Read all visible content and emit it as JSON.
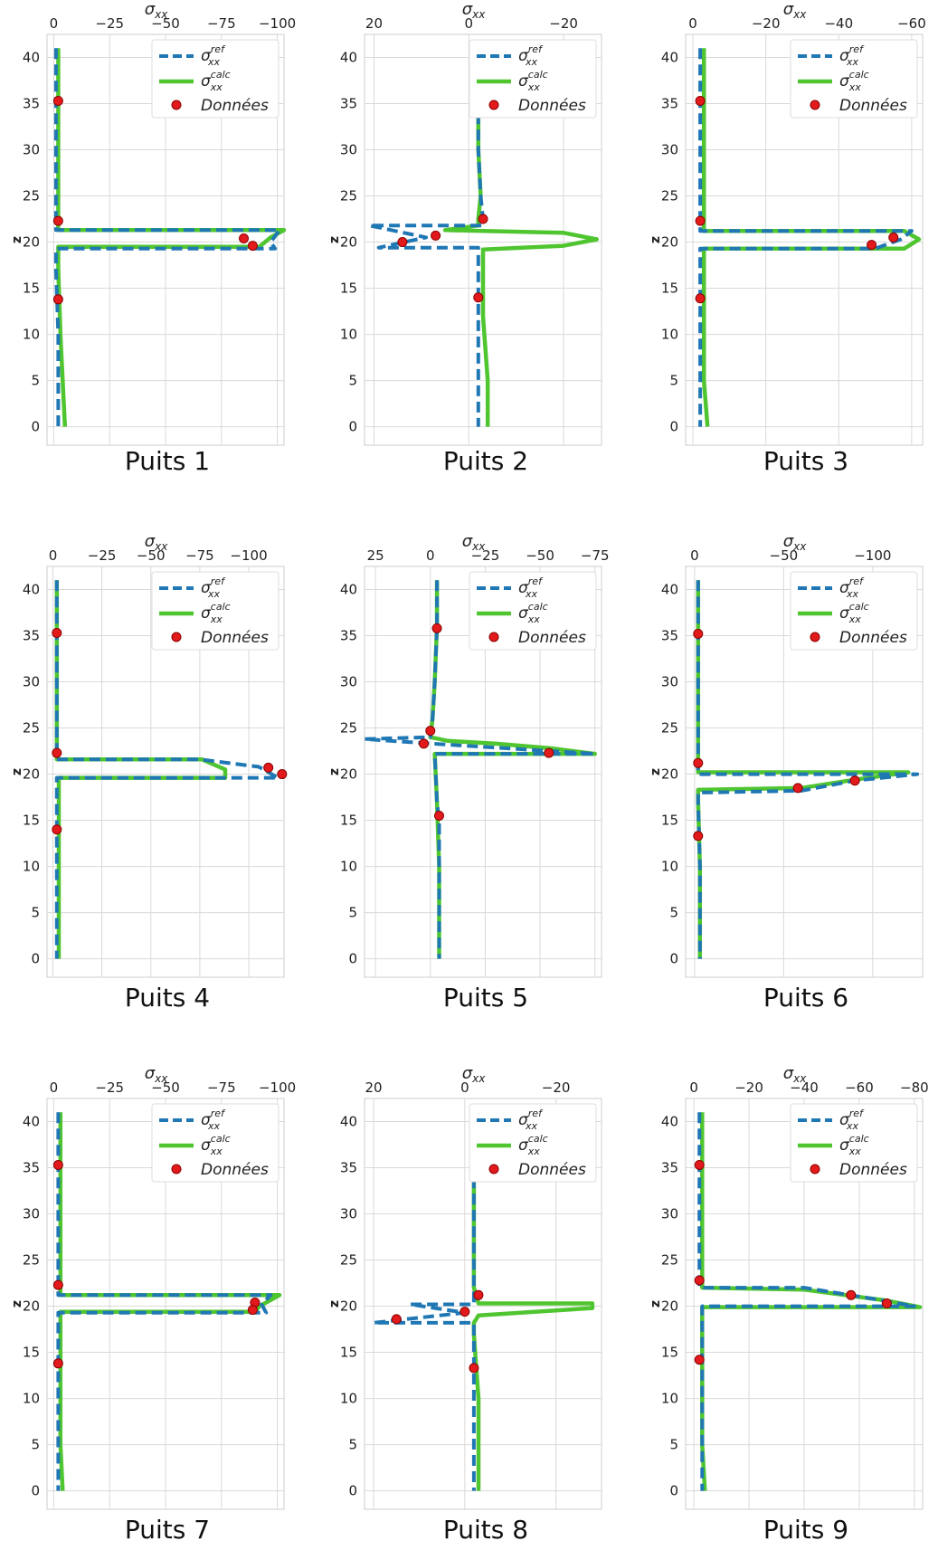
{
  "figure": {
    "xlabel": "σ",
    "xlabel_sub": "xx",
    "ylabel": "z",
    "legend": {
      "ref": {
        "sym": "σ",
        "sup": "ref",
        "sub": "xx"
      },
      "calc": {
        "sym": "σ",
        "sup": "calc",
        "sub": "xx"
      },
      "data": "Données"
    },
    "colors": {
      "ref": "#1f77b4",
      "calc": "#4fc52f",
      "data": "#e31a1c",
      "data_edge": "#8b0000",
      "grid": "#d9d9d9"
    }
  },
  "chart_data": [
    {
      "type": "line",
      "title": "Puits 1",
      "legend_position": "top-right",
      "grid": true,
      "xlim": [
        3,
        -103
      ],
      "ylim": [
        -2,
        42.5
      ],
      "xticks": [
        0,
        -25,
        -50,
        -75,
        -100
      ],
      "yticks": [
        0,
        5,
        10,
        15,
        20,
        25,
        30,
        35,
        40
      ],
      "series": [
        {
          "name": "ref",
          "x": [
            -1,
            -1,
            -1,
            -1,
            -1,
            -1,
            -101,
            -97,
            -99,
            -1,
            -1,
            -2,
            -2,
            -2
          ],
          "y": [
            41,
            36,
            30,
            25,
            22.5,
            21.3,
            21.3,
            20,
            19.3,
            19.3,
            17,
            10,
            5,
            0
          ]
        },
        {
          "name": "calc",
          "x": [
            -2,
            -2,
            -2,
            -2,
            -2,
            -2,
            -103,
            -97,
            -92,
            -2,
            -2,
            -3,
            -4,
            -5
          ],
          "y": [
            41,
            36,
            30,
            25,
            22.5,
            21.3,
            21.3,
            20.5,
            19.5,
            19.5,
            17,
            10,
            5,
            0
          ]
        }
      ],
      "points": {
        "x": [
          -2,
          -2,
          -2,
          -85,
          -89
        ],
        "y": [
          35.3,
          22.3,
          13.8,
          20.4,
          19.6
        ]
      }
    },
    {
      "type": "line",
      "title": "Puits 2",
      "legend_position": "top-right",
      "grid": true,
      "xlim": [
        22,
        -28
      ],
      "ylim": [
        -2,
        42.5
      ],
      "xticks": [
        20,
        0,
        -20
      ],
      "yticks": [
        0,
        5,
        10,
        15,
        20,
        25,
        30,
        35,
        40
      ],
      "series": [
        {
          "name": "ref",
          "x": [
            -2,
            -2,
            -2,
            -2.5,
            -3,
            -3,
            21,
            9,
            19,
            -2,
            -2,
            -2,
            -2,
            -2
          ],
          "y": [
            41,
            36,
            30,
            25,
            22.5,
            21.8,
            21.8,
            20.5,
            19.4,
            19.4,
            17,
            10,
            5,
            0
          ]
        },
        {
          "name": "calc",
          "x": [
            -2,
            -2,
            -2,
            -2.5,
            -2,
            -2,
            5,
            -20,
            -27,
            -20,
            -3,
            -3,
            -4,
            -4
          ],
          "y": [
            41,
            36,
            30,
            25,
            22.5,
            21.8,
            21.3,
            21,
            20.3,
            19.6,
            19.2,
            12,
            5,
            0
          ]
        }
      ],
      "points": {
        "x": [
          -2,
          -3,
          -2,
          7,
          14
        ],
        "y": [
          35.3,
          22.5,
          14,
          20.7,
          20
        ]
      }
    },
    {
      "type": "line",
      "title": "Puits 3",
      "legend_position": "top-right",
      "grid": true,
      "xlim": [
        2,
        -63
      ],
      "ylim": [
        -2,
        42.5
      ],
      "xticks": [
        0,
        -20,
        -40,
        -60
      ],
      "yticks": [
        0,
        5,
        10,
        15,
        20,
        25,
        30,
        35,
        40
      ],
      "series": [
        {
          "name": "ref",
          "x": [
            -2,
            -2,
            -2,
            -2,
            -2,
            -2,
            -60,
            -57,
            -50,
            -2,
            -2,
            -2,
            -2,
            -2
          ],
          "y": [
            41,
            36,
            30,
            25,
            22.5,
            21.2,
            21.2,
            20.3,
            19.3,
            19.3,
            17,
            10,
            5,
            0
          ]
        },
        {
          "name": "calc",
          "x": [
            -3,
            -3,
            -3,
            -3,
            -3,
            -3,
            -58,
            -62,
            -58,
            -3,
            -3,
            -3,
            -3,
            -4
          ],
          "y": [
            41,
            36,
            30,
            25,
            22.5,
            21.2,
            21.2,
            20.3,
            19.3,
            19.3,
            17,
            10,
            5,
            0
          ]
        }
      ],
      "points": {
        "x": [
          -2,
          -2,
          -2,
          -55,
          -49
        ],
        "y": [
          35.3,
          22.3,
          13.9,
          20.5,
          19.7
        ]
      }
    },
    {
      "type": "line",
      "title": "Puits 4",
      "legend_position": "top-right",
      "grid": true,
      "xlim": [
        3,
        -118
      ],
      "ylim": [
        -2,
        42.5
      ],
      "xticks": [
        0,
        -25,
        -50,
        -75,
        -100
      ],
      "yticks": [
        0,
        5,
        10,
        15,
        20,
        25,
        30,
        35,
        40
      ],
      "series": [
        {
          "name": "ref",
          "x": [
            -2,
            -2,
            -2,
            -2,
            -2,
            -2,
            -75,
            -105,
            -115,
            -2,
            -2,
            -2,
            -2,
            -2
          ],
          "y": [
            41,
            36,
            30,
            25,
            22.5,
            21.6,
            21.6,
            20.8,
            19.6,
            19.6,
            17,
            10,
            5,
            0
          ]
        },
        {
          "name": "calc",
          "x": [
            -2,
            -2,
            -2,
            -2,
            -2,
            -2,
            -76,
            -88,
            -88,
            -3,
            -3,
            -3,
            -3,
            -3
          ],
          "y": [
            41,
            36,
            30,
            25,
            22.5,
            21.6,
            21.6,
            20.5,
            19.6,
            19.6,
            17,
            10,
            5,
            0
          ]
        }
      ],
      "points": {
        "x": [
          -2,
          -2,
          -2,
          -110,
          -117
        ],
        "y": [
          35.3,
          22.3,
          14,
          20.7,
          20
        ]
      }
    },
    {
      "type": "line",
      "title": "Puits 5",
      "legend_position": "top-right",
      "grid": true,
      "xlim": [
        30,
        -78
      ],
      "ylim": [
        -2,
        42.5
      ],
      "xticks": [
        25,
        0,
        -25,
        -50,
        -75
      ],
      "yticks": [
        0,
        5,
        10,
        15,
        20,
        25,
        30,
        35,
        40
      ],
      "series": [
        {
          "name": "ref",
          "x": [
            -3,
            -3,
            -2,
            -1,
            0,
            30,
            -1,
            -75,
            -2,
            -3,
            -4,
            -4,
            -4,
            -4
          ],
          "y": [
            41,
            36,
            30,
            26,
            24,
            23.8,
            23.3,
            22.2,
            22.2,
            17,
            15,
            10,
            5,
            0
          ]
        },
        {
          "name": "calc",
          "x": [
            -3,
            -3,
            -2,
            -1,
            0,
            -8,
            -30,
            -55,
            -75,
            -2,
            -3,
            -4,
            -4,
            -4
          ],
          "y": [
            41,
            36,
            30,
            26,
            24,
            23.6,
            23.3,
            22.8,
            22.2,
            22.2,
            17,
            10,
            5,
            0
          ]
        }
      ],
      "points": {
        "x": [
          -3,
          0,
          3,
          -54,
          -4
        ],
        "y": [
          35.8,
          24.7,
          23.3,
          22.3,
          15.5
        ]
      }
    },
    {
      "type": "line",
      "title": "Puits 6",
      "legend_position": "top-right",
      "grid": true,
      "xlim": [
        5,
        -128
      ],
      "ylim": [
        -2,
        42.5
      ],
      "xticks": [
        0,
        -50,
        -100
      ],
      "yticks": [
        0,
        5,
        10,
        15,
        20,
        25,
        30,
        35,
        40
      ],
      "series": [
        {
          "name": "ref",
          "x": [
            -2,
            -2,
            -2,
            -2,
            -2,
            -2,
            -125,
            -90,
            -60,
            -2,
            -2,
            -3,
            -3,
            -3
          ],
          "y": [
            41,
            36,
            30,
            25,
            22,
            20,
            20,
            19.3,
            18.2,
            18,
            17,
            10,
            5,
            0
          ]
        },
        {
          "name": "calc",
          "x": [
            -2,
            -2,
            -2,
            -2,
            -2,
            -2,
            -120,
            -90,
            -60,
            -2,
            -2,
            -3,
            -3,
            -3
          ],
          "y": [
            41,
            36,
            30,
            25,
            22,
            20.2,
            20.2,
            19.4,
            18.5,
            18.3,
            17,
            10,
            5,
            0
          ]
        }
      ],
      "points": {
        "x": [
          -2,
          -2,
          -2,
          -58,
          -90
        ],
        "y": [
          35.2,
          21.2,
          13.3,
          18.5,
          19.3
        ]
      }
    },
    {
      "type": "line",
      "title": "Puits 7",
      "legend_position": "top-right",
      "grid": true,
      "xlim": [
        3,
        -103
      ],
      "ylim": [
        -2,
        42.5
      ],
      "xticks": [
        0,
        -25,
        -50,
        -75,
        -100
      ],
      "yticks": [
        0,
        5,
        10,
        15,
        20,
        25,
        30,
        35,
        40
      ],
      "series": [
        {
          "name": "ref",
          "x": [
            -2,
            -2,
            -2,
            -2,
            -2,
            -2,
            -97,
            -93,
            -95,
            -2,
            -2,
            -2,
            -2,
            -2
          ],
          "y": [
            41,
            36,
            30,
            25,
            22.3,
            21.2,
            21.2,
            20.2,
            19.3,
            19.3,
            17,
            10,
            5,
            0
          ]
        },
        {
          "name": "calc",
          "x": [
            -3,
            -3,
            -3,
            -3,
            -3,
            -3,
            -101,
            -92,
            -90,
            -3,
            -3,
            -3,
            -3,
            -4
          ],
          "y": [
            41,
            36,
            30,
            25,
            22.3,
            21.2,
            21.2,
            20,
            19.4,
            19.4,
            17,
            10,
            5,
            0
          ]
        }
      ],
      "points": {
        "x": [
          -2,
          -2,
          -2,
          -90,
          -89
        ],
        "y": [
          35.3,
          22.3,
          13.8,
          20.4,
          19.6
        ]
      }
    },
    {
      "type": "line",
      "title": "Puits 8",
      "legend_position": "top-right",
      "grid": true,
      "xlim": [
        22,
        -30
      ],
      "ylim": [
        -2,
        42.5
      ],
      "xticks": [
        20,
        0,
        -20
      ],
      "yticks": [
        0,
        5,
        10,
        15,
        20,
        25,
        30,
        35,
        40
      ],
      "series": [
        {
          "name": "ref",
          "x": [
            -2,
            -2,
            -2,
            -2,
            -2,
            -2,
            12,
            0,
            20,
            -2,
            -2,
            -2,
            -2,
            -2
          ],
          "y": [
            41,
            36,
            30,
            25,
            22,
            20.2,
            20.2,
            19.3,
            18.2,
            18.2,
            17,
            10,
            5,
            0
          ]
        },
        {
          "name": "calc",
          "x": [
            -2,
            -2,
            -2,
            -2,
            -2,
            -3,
            -28,
            -28,
            -3,
            -2,
            -2,
            -3,
            -3,
            -3
          ],
          "y": [
            41,
            36,
            30,
            25,
            22,
            20.3,
            20.3,
            19.8,
            19,
            18.2,
            17,
            10,
            5,
            0
          ]
        }
      ],
      "points": {
        "x": [
          -2,
          -3,
          0,
          15,
          -2
        ],
        "y": [
          35.3,
          21.2,
          19.4,
          18.6,
          13.3
        ]
      }
    },
    {
      "type": "line",
      "title": "Puits 9",
      "legend_position": "top-right",
      "grid": true,
      "xlim": [
        3,
        -83
      ],
      "ylim": [
        -2,
        42.5
      ],
      "xticks": [
        0,
        -20,
        -40,
        -60,
        -80
      ],
      "yticks": [
        0,
        5,
        10,
        15,
        20,
        25,
        30,
        35,
        40
      ],
      "series": [
        {
          "name": "ref",
          "x": [
            -2,
            -2,
            -2,
            -2,
            -2,
            -2,
            -40,
            -65,
            -80,
            -3,
            -3,
            -3,
            -3,
            -3
          ],
          "y": [
            41,
            36,
            30,
            25,
            23,
            22,
            22,
            20.8,
            20,
            20,
            17,
            10,
            5,
            0
          ]
        },
        {
          "name": "calc",
          "x": [
            -3,
            -3,
            -3,
            -3,
            -3,
            -3,
            -40,
            -70,
            -82,
            -3,
            -3,
            -3,
            -3,
            -4
          ],
          "y": [
            41,
            36,
            30,
            25,
            23,
            22,
            21.8,
            20.6,
            19.9,
            19.9,
            17,
            10,
            5,
            0
          ]
        }
      ],
      "points": {
        "x": [
          -2,
          -2,
          -2,
          -57,
          -70
        ],
        "y": [
          35.3,
          22.8,
          14.2,
          21.2,
          20.3
        ]
      }
    }
  ]
}
